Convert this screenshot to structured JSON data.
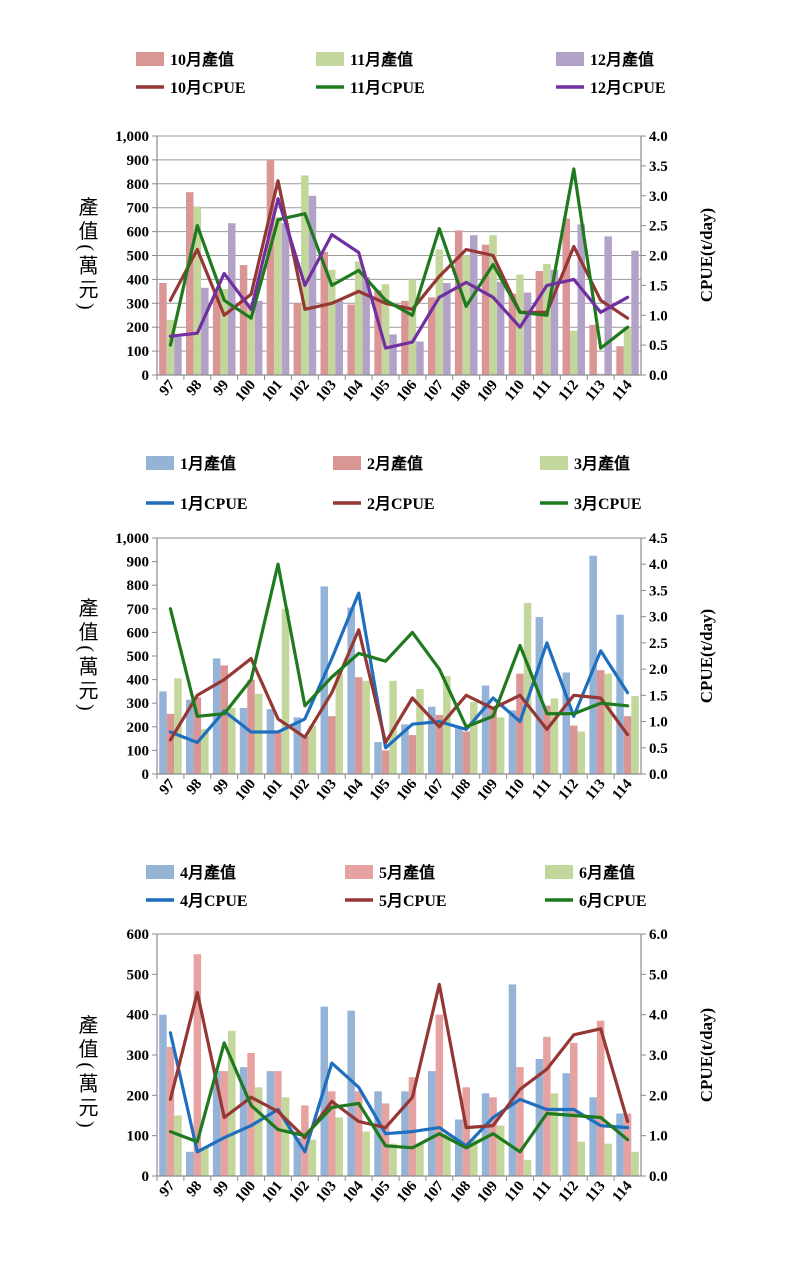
{
  "chart_data": [
    {
      "type": "bar",
      "categories": [
        "97",
        "98",
        "99",
        "100",
        "101",
        "102",
        "103",
        "104",
        "105",
        "106",
        "107",
        "108",
        "109",
        "110",
        "111",
        "112",
        "113",
        "114"
      ],
      "ylabel": "產值(萬元)",
      "y2label": "CPUE(t/day)",
      "ylim": [
        0,
        1000
      ],
      "yticks": [
        "0",
        "100",
        "200",
        "300",
        "400",
        "500",
        "600",
        "700",
        "800",
        "900",
        "1,000"
      ],
      "y2lim": [
        0,
        4
      ],
      "y2ticks": [
        "0.0",
        "0.5",
        "1.0",
        "1.5",
        "2.0",
        "2.5",
        "3.0",
        "3.5",
        "4.0"
      ],
      "grid": true,
      "bar_series": [
        {
          "name": "10月產值",
          "color": "#d99694",
          "values": [
            385,
            765,
            355,
            460,
            900,
            300,
            515,
            295,
            355,
            310,
            325,
            605,
            545,
            340,
            435,
            655,
            210,
            120
          ]
        },
        {
          "name": "11月產值",
          "color": "#c3d69b",
          "values": [
            230,
            705,
            360,
            300,
            660,
            835,
            440,
            475,
            380,
            400,
            525,
            500,
            585,
            420,
            465,
            185,
            5,
            195
          ]
        },
        {
          "name": "12月產值",
          "color": "#b3a2c7",
          "values": [
            160,
            365,
            635,
            310,
            635,
            750,
            310,
            410,
            170,
            140,
            385,
            585,
            390,
            345,
            440,
            630,
            580,
            520
          ]
        }
      ],
      "line_series": [
        {
          "name": "10月CPUE",
          "color": "#953735",
          "values": [
            1.25,
            2.1,
            1.0,
            1.35,
            3.25,
            1.1,
            1.2,
            1.4,
            1.2,
            1.1,
            1.65,
            2.1,
            2.0,
            1.05,
            1.05,
            2.15,
            1.25,
            0.95
          ]
        },
        {
          "name": "11月CPUE",
          "color": "#1f7a1f",
          "values": [
            0.5,
            2.5,
            1.25,
            0.95,
            2.6,
            2.7,
            1.5,
            1.75,
            1.25,
            1.0,
            2.45,
            1.15,
            1.85,
            1.05,
            1.0,
            3.45,
            0.45,
            0.8
          ]
        },
        {
          "name": "12月CPUE",
          "color": "#7030a0",
          "values": [
            0.65,
            0.7,
            1.7,
            1.1,
            2.95,
            1.5,
            2.35,
            2.05,
            0.45,
            0.55,
            1.3,
            1.55,
            1.3,
            0.8,
            1.5,
            1.6,
            1.05,
            1.3
          ]
        }
      ]
    },
    {
      "type": "bar",
      "categories": [
        "97",
        "98",
        "99",
        "100",
        "101",
        "102",
        "103",
        "104",
        "105",
        "106",
        "107",
        "108",
        "109",
        "110",
        "111",
        "112",
        "113",
        "114"
      ],
      "ylabel": "產值(萬元)",
      "y2label": "CPUE(t/day)",
      "ylim": [
        0,
        1000
      ],
      "yticks": [
        "0",
        "100",
        "200",
        "300",
        "400",
        "500",
        "600",
        "700",
        "800",
        "900",
        "1,000"
      ],
      "y2lim": [
        0,
        4.5
      ],
      "y2ticks": [
        "0.0",
        "0.5",
        "1.0",
        "1.5",
        "2.0",
        "2.5",
        "3.0",
        "3.5",
        "4.0",
        "4.5"
      ],
      "grid": false,
      "bar_series": [
        {
          "name": "1月產值",
          "color": "#95b3d7",
          "values": [
            350,
            315,
            490,
            280,
            275,
            240,
            795,
            705,
            135,
            210,
            285,
            200,
            375,
            270,
            665,
            430,
            925,
            675
          ]
        },
        {
          "name": "2月產值",
          "color": "#d99694",
          "values": [
            255,
            325,
            460,
            400,
            175,
            160,
            245,
            410,
            100,
            165,
            250,
            180,
            280,
            425,
            290,
            205,
            440,
            245
          ]
        },
        {
          "name": "3月產值",
          "color": "#c3d69b",
          "values": [
            405,
            190,
            280,
            340,
            700,
            205,
            425,
            395,
            395,
            360,
            415,
            305,
            240,
            725,
            320,
            180,
            425,
            330
          ]
        }
      ],
      "line_series": [
        {
          "name": "1月CPUE",
          "color": "#1f6fbf",
          "values": [
            0.8,
            0.6,
            1.2,
            0.8,
            0.8,
            1.05,
            2.2,
            3.45,
            0.5,
            0.95,
            1.0,
            0.85,
            1.45,
            1.0,
            2.5,
            1.1,
            2.35,
            1.55
          ]
        },
        {
          "name": "2月CPUE",
          "color": "#953735",
          "values": [
            0.65,
            1.5,
            1.8,
            2.2,
            1.05,
            0.7,
            1.55,
            2.75,
            0.6,
            1.45,
            0.9,
            1.5,
            1.25,
            1.5,
            0.85,
            1.5,
            1.45,
            0.75
          ]
        },
        {
          "name": "3月CPUE",
          "color": "#1f7a1f",
          "values": [
            3.15,
            1.1,
            1.15,
            1.8,
            4.0,
            1.3,
            1.85,
            2.3,
            2.15,
            2.7,
            2.0,
            0.9,
            1.1,
            2.45,
            1.15,
            1.15,
            1.35,
            1.3
          ]
        }
      ]
    },
    {
      "type": "bar",
      "categories": [
        "97",
        "98",
        "99",
        "100",
        "101",
        "102",
        "103",
        "104",
        "105",
        "106",
        "107",
        "108",
        "109",
        "110",
        "111",
        "112",
        "113",
        "114"
      ],
      "ylabel": "產值(萬元)",
      "y2label": "CPUE(t/day)",
      "ylim": [
        0,
        600
      ],
      "yticks": [
        "0",
        "100",
        "200",
        "300",
        "400",
        "500",
        "600"
      ],
      "y2lim": [
        0,
        6
      ],
      "y2ticks": [
        "0.0",
        "1.0",
        "2.0",
        "3.0",
        "4.0",
        "5.0",
        "6.0"
      ],
      "grid": false,
      "bar_series": [
        {
          "name": "4月產值",
          "color": "#95b3d7",
          "values": [
            400,
            60,
            260,
            270,
            260,
            95,
            420,
            410,
            210,
            210,
            260,
            140,
            205,
            475,
            290,
            255,
            195,
            155
          ]
        },
        {
          "name": "5月產值",
          "color": "#e6a2a0",
          "values": [
            320,
            550,
            260,
            305,
            260,
            175,
            210,
            210,
            180,
            245,
            400,
            220,
            195,
            270,
            345,
            330,
            385,
            155
          ]
        },
        {
          "name": "6月產值",
          "color": "#c3d69b",
          "values": [
            150,
            70,
            360,
            220,
            195,
            90,
            145,
            110,
            80,
            80,
            105,
            90,
            125,
            40,
            205,
            85,
            80,
            60
          ]
        }
      ],
      "line_series": [
        {
          "name": "4月CPUE",
          "color": "#1f6fbf",
          "values": [
            3.55,
            0.6,
            0.95,
            1.25,
            1.65,
            0.6,
            2.8,
            2.2,
            1.05,
            1.1,
            1.2,
            0.75,
            1.45,
            1.9,
            1.65,
            1.65,
            1.25,
            1.2
          ]
        },
        {
          "name": "5月CPUE",
          "color": "#953735",
          "values": [
            1.9,
            4.55,
            1.45,
            1.95,
            1.6,
            0.95,
            1.85,
            1.35,
            1.2,
            1.95,
            4.75,
            1.2,
            1.25,
            2.15,
            2.65,
            3.5,
            3.65,
            1.35
          ]
        },
        {
          "name": "6月CPUE",
          "color": "#1f7a1f",
          "values": [
            1.1,
            0.85,
            3.3,
            1.75,
            1.15,
            1.0,
            1.7,
            1.8,
            0.75,
            0.7,
            1.05,
            0.7,
            1.05,
            0.6,
            1.55,
            1.5,
            1.45,
            0.9
          ]
        }
      ]
    }
  ]
}
